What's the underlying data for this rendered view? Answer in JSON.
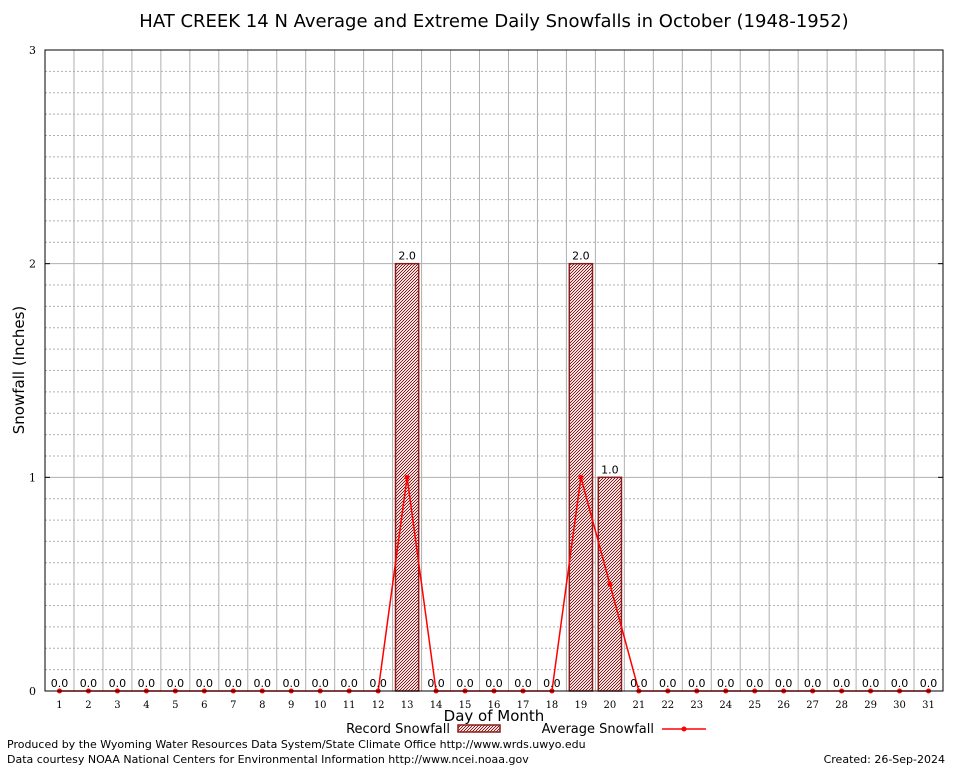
{
  "chart_data": {
    "type": "bar",
    "title": "HAT CREEK 14 N Average and Extreme Daily Snowfalls in October (1948-1952)",
    "xlabel": "Day of Month",
    "ylabel": "Snowfall (Inches)",
    "ylim": [
      0,
      3
    ],
    "yticks": [
      "0",
      "1",
      "2",
      "3"
    ],
    "categories": [
      "1",
      "2",
      "3",
      "4",
      "5",
      "6",
      "7",
      "8",
      "9",
      "10",
      "11",
      "12",
      "13",
      "14",
      "15",
      "16",
      "17",
      "18",
      "19",
      "20",
      "21",
      "22",
      "23",
      "24",
      "25",
      "26",
      "27",
      "28",
      "29",
      "30",
      "31"
    ],
    "series": [
      {
        "name": "Record Snowfall",
        "type": "bar",
        "color": "#8b1a1a",
        "values": [
          0,
          0,
          0,
          0,
          0,
          0,
          0,
          0,
          0,
          0,
          0,
          0,
          2.0,
          0,
          0,
          0,
          0,
          0,
          2.0,
          1.0,
          0,
          0,
          0,
          0,
          0,
          0,
          0,
          0,
          0,
          0,
          0
        ],
        "labels": [
          "0.0",
          "0.0",
          "0.0",
          "0.0",
          "0.0",
          "0.0",
          "0.0",
          "0.0",
          "0.0",
          "0.0",
          "0.0",
          "0.0",
          "2.0",
          "0.0",
          "0.0",
          "0.0",
          "0.0",
          "0.0",
          "2.0",
          "1.0",
          "0.0",
          "0.0",
          "0.0",
          "0.0",
          "0.0",
          "0.0",
          "0.0",
          "0.0",
          "0.0",
          "0.0",
          "0.0"
        ]
      },
      {
        "name": "Average Snowfall",
        "type": "line",
        "color": "#ff0000",
        "values": [
          0,
          0,
          0,
          0,
          0,
          0,
          0,
          0,
          0,
          0,
          0,
          0,
          1.0,
          0,
          0,
          0,
          0,
          0,
          1.0,
          0.5,
          0,
          0,
          0,
          0,
          0,
          0,
          0,
          0,
          0,
          0,
          0
        ]
      }
    ],
    "legend_position": "bottom",
    "grid": true
  },
  "footer": {
    "credit_line1": "Produced by the Wyoming Water Resources Data System/State Climate Office http://www.wrds.uwyo.edu",
    "credit_line2": "Data courtesy NOAA National Centers for Environmental Information http://www.ncei.noaa.gov",
    "created": "Created:  26-Sep-2024"
  }
}
